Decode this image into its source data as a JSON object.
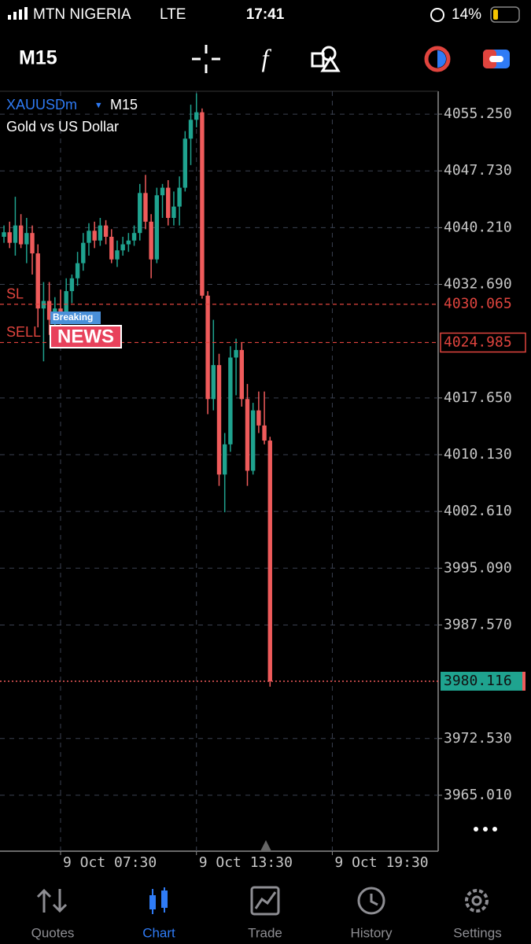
{
  "status_bar": {
    "carrier": "MTN NIGERIA",
    "network": "LTE",
    "time": "17:41",
    "battery": "14%"
  },
  "toolbar": {
    "timeframe": "M15"
  },
  "chart_data": {
    "type": "candlestick",
    "symbol": "XAUUSDm",
    "timeframe": "M15",
    "title": "Gold vs US Dollar",
    "x": [
      0,
      1,
      2,
      3,
      4,
      5,
      6,
      7,
      8,
      9,
      10,
      11,
      12,
      13,
      14,
      15,
      16,
      17,
      18,
      19,
      20,
      21,
      22,
      23,
      24,
      25,
      26,
      27,
      28,
      29,
      30,
      31,
      32,
      33,
      34,
      35,
      36,
      37,
      38,
      39,
      40,
      41,
      42,
      43,
      44,
      45,
      46,
      47
    ],
    "open": [
      4039.0,
      4039.6,
      4038.2,
      4040.5,
      4038.0,
      4039.5,
      4036.8,
      4029.5,
      4030.5,
      4028.0,
      4029.5,
      4029.0,
      4031.8,
      4033.5,
      4035.5,
      4038.2,
      4039.8,
      4038.5,
      4040.5,
      4039.0,
      4036.0,
      4037.2,
      4038.0,
      4038.5,
      4039.5,
      4044.8,
      4041.0,
      4036.0,
      4044.5,
      4045.5,
      4041.5,
      4043.0,
      4045.5,
      4052.0,
      4054.5,
      4055.5,
      4031.2,
      4017.5,
      4022.0,
      4007.5,
      4011.5,
      4023.0,
      4024.0,
      4017.5,
      4008.0,
      4016.0,
      4014.0,
      4012.0
    ],
    "high": [
      4040.5,
      4041.0,
      4044.3,
      4042.0,
      4041.5,
      4040.5,
      4038.0,
      4033.0,
      4033.0,
      4031.0,
      4032.0,
      4033.5,
      4034.0,
      4037.0,
      4039.5,
      4040.8,
      4041.0,
      4041.5,
      4041.2,
      4040.0,
      4038.5,
      4039.0,
      4039.5,
      4040.5,
      4046.0,
      4047.2,
      4042.0,
      4045.5,
      4046.0,
      4046.5,
      4045.0,
      4047.0,
      4053.0,
      4056.5,
      4058.0,
      4056.0,
      4031.8,
      4028.0,
      4023.5,
      4013.0,
      4024.5,
      4025.5,
      4025.0,
      4019.5,
      4017.0,
      4018.5,
      4018.5,
      4012.5
    ],
    "low": [
      4038.2,
      4037.5,
      4036.5,
      4037.5,
      4035.5,
      4034.0,
      4027.0,
      4022.5,
      4026.0,
      4026.0,
      4027.0,
      4028.0,
      4030.2,
      4032.5,
      4034.5,
      4036.5,
      4037.5,
      4037.8,
      4038.0,
      4035.5,
      4035.0,
      4036.5,
      4037.0,
      4037.8,
      4038.5,
      4040.0,
      4033.5,
      4035.5,
      4041.5,
      4040.5,
      4040.5,
      4040.5,
      4045.0,
      4048.5,
      4053.5,
      4030.8,
      4015.5,
      4016.0,
      4006.0,
      4002.5,
      4010.5,
      4018.0,
      4016.5,
      4006.0,
      4007.5,
      4013.0,
      4011.5,
      3979.4
    ],
    "close": [
      4039.6,
      4038.2,
      4040.5,
      4038.0,
      4039.5,
      4036.8,
      4029.5,
      4030.5,
      4028.0,
      4029.5,
      4029.0,
      4031.8,
      4033.5,
      4035.5,
      4038.2,
      4039.8,
      4038.5,
      4040.5,
      4039.0,
      4036.0,
      4037.2,
      4038.0,
      4038.5,
      4039.5,
      4044.8,
      4041.0,
      4036.0,
      4044.5,
      4045.5,
      4041.5,
      4043.0,
      4045.5,
      4052.0,
      4054.5,
      4055.5,
      4031.2,
      4017.5,
      4022.0,
      4007.5,
      4011.5,
      4023.0,
      4024.0,
      4017.5,
      4008.0,
      4016.0,
      4014.0,
      4012.0,
      3980.116
    ],
    "up_color": "#1fa38f",
    "down_color": "#ef5b5b",
    "xlim": [
      -0.7,
      76.7
    ],
    "xticks": [
      {
        "value": 10,
        "label": "9 Oct 07:30"
      },
      {
        "value": 34,
        "label": "9 Oct 13:30"
      },
      {
        "value": 58,
        "label": "9 Oct 19:30"
      }
    ],
    "ylim": [
      3957.6,
      4058.28
    ],
    "yticks": [
      {
        "value": 4055.25,
        "label": "4055.250"
      },
      {
        "value": 4047.73,
        "label": "4047.730"
      },
      {
        "value": 4040.21,
        "label": "4040.210"
      },
      {
        "value": 4032.69,
        "label": "4032.690"
      },
      {
        "value": 4017.65,
        "label": "4017.650"
      },
      {
        "value": 4010.13,
        "label": "4010.130"
      },
      {
        "value": 4002.61,
        "label": "4002.610"
      },
      {
        "value": 3995.09,
        "label": "3995.090"
      },
      {
        "value": 3987.57,
        "label": "3987.570"
      },
      {
        "value": 3972.53,
        "label": "3972.530"
      },
      {
        "value": 3965.01,
        "label": "3965.010"
      }
    ],
    "grid": true,
    "lines": [
      {
        "name": "SL",
        "value": 4030.065,
        "color": "#e0443e"
      },
      {
        "name": "SELL",
        "value": 4024.985,
        "color": "#e0443e"
      }
    ],
    "current_price": {
      "value": 3980.116,
      "color": "#1fa38f"
    }
  },
  "news_badge": {
    "top": "Breaking",
    "bottom": "NEWS"
  },
  "tabs": [
    {
      "label": "Quotes"
    },
    {
      "label": "Chart",
      "active": true
    },
    {
      "label": "Trade"
    },
    {
      "label": "History"
    },
    {
      "label": "Settings"
    }
  ]
}
